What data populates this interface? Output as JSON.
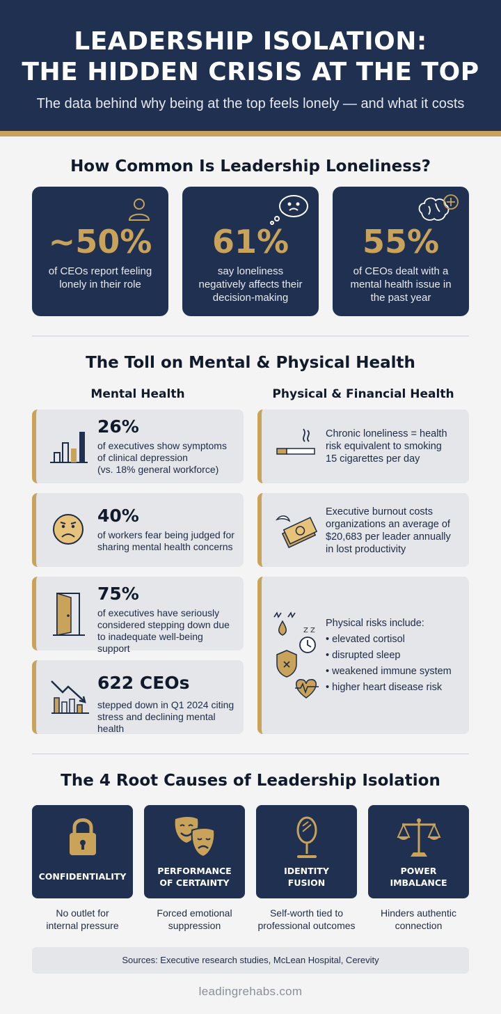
{
  "header": {
    "title_line1": "LEADERSHIP ISOLATION:",
    "title_line2": "THE HIDDEN CRISIS AT THE TOP",
    "subtitle": "The data behind why being at the top feels lonely — and what it costs"
  },
  "section1": {
    "title": "How Common Is Leadership Loneliness?",
    "cards": [
      {
        "value": "~50%",
        "line1": "of CEOs report feeling",
        "line2": "lonely in their role",
        "line3": "",
        "icon": "person-icon"
      },
      {
        "value": "61%",
        "line1": "say loneliness",
        "line2": "negatively affects their",
        "line3": "decision-making",
        "icon": "thought-bubble-sad-icon"
      },
      {
        "value": "55%",
        "line1": "of CEOs dealt with a",
        "line2": "mental health issue in",
        "line3": "the past year",
        "icon": "brain-plus-icon"
      }
    ]
  },
  "section2": {
    "title": "The Toll on Mental & Physical Health",
    "mental_heading": "Mental Health",
    "physical_heading": "Physical & Financial Health",
    "mental": [
      {
        "value": "26%",
        "lines": [
          "of executives show symptoms",
          "of clinical depression",
          "(vs. 18% general workforce)"
        ],
        "icon": "bar-chart-icon"
      },
      {
        "value": "40%",
        "lines": [
          "of workers fear being judged for",
          "sharing mental health concerns"
        ],
        "icon": "sad-face-icon"
      },
      {
        "value": "75%",
        "lines": [
          "of executives have seriously",
          "considered stepping down due",
          "to inadequate well-being support"
        ],
        "icon": "open-door-icon"
      },
      {
        "value": "622 CEOs",
        "lines": [
          "stepped down in Q1 2024 citing",
          "stress and declining mental health"
        ],
        "icon": "declining-chart-icon"
      }
    ],
    "physical": [
      {
        "lines": [
          "Chronic loneliness = health",
          "risk equivalent to smoking",
          "15 cigarettes per day"
        ],
        "icon": "cigarette-icon"
      },
      {
        "lines": [
          "Executive burnout costs",
          "organizations an average of",
          "$20,683 per leader annually",
          "in lost productivity"
        ],
        "icon": "flying-money-icon"
      },
      {
        "intro": "Physical risks include:",
        "bullets": [
          "• elevated cortisol",
          "• disrupted sleep",
          "• weakened immune system",
          "• higher heart disease risk"
        ],
        "icon": "health-risks-icon"
      }
    ]
  },
  "section3": {
    "title": "The 4 Root Causes of Leadership Isolation",
    "causes": [
      {
        "line1": "CONFIDENTIALITY",
        "line2": "",
        "desc1": "No outlet for",
        "desc2": "internal pressure",
        "icon": "padlock-icon"
      },
      {
        "line1": "PERFORMANCE",
        "line2": "OF CERTAINTY",
        "desc1": "Forced emotional",
        "desc2": "suppression",
        "icon": "theater-masks-icon"
      },
      {
        "line1": "IDENTITY",
        "line2": "FUSION",
        "desc1": "Self-worth tied to",
        "desc2": "professional outcomes",
        "icon": "mirror-icon"
      },
      {
        "line1": "POWER",
        "line2": "IMBALANCE",
        "desc1": "Hinders authentic",
        "desc2": "connection",
        "icon": "scales-icon"
      }
    ]
  },
  "sources": "Sources: Executive research studies, McLean Hospital, Cerevity",
  "footer": "leadingrehabs.com",
  "colors": {
    "navy": "#1f3050",
    "gold": "#c9a35a",
    "card_gray": "#e4e6ea"
  }
}
